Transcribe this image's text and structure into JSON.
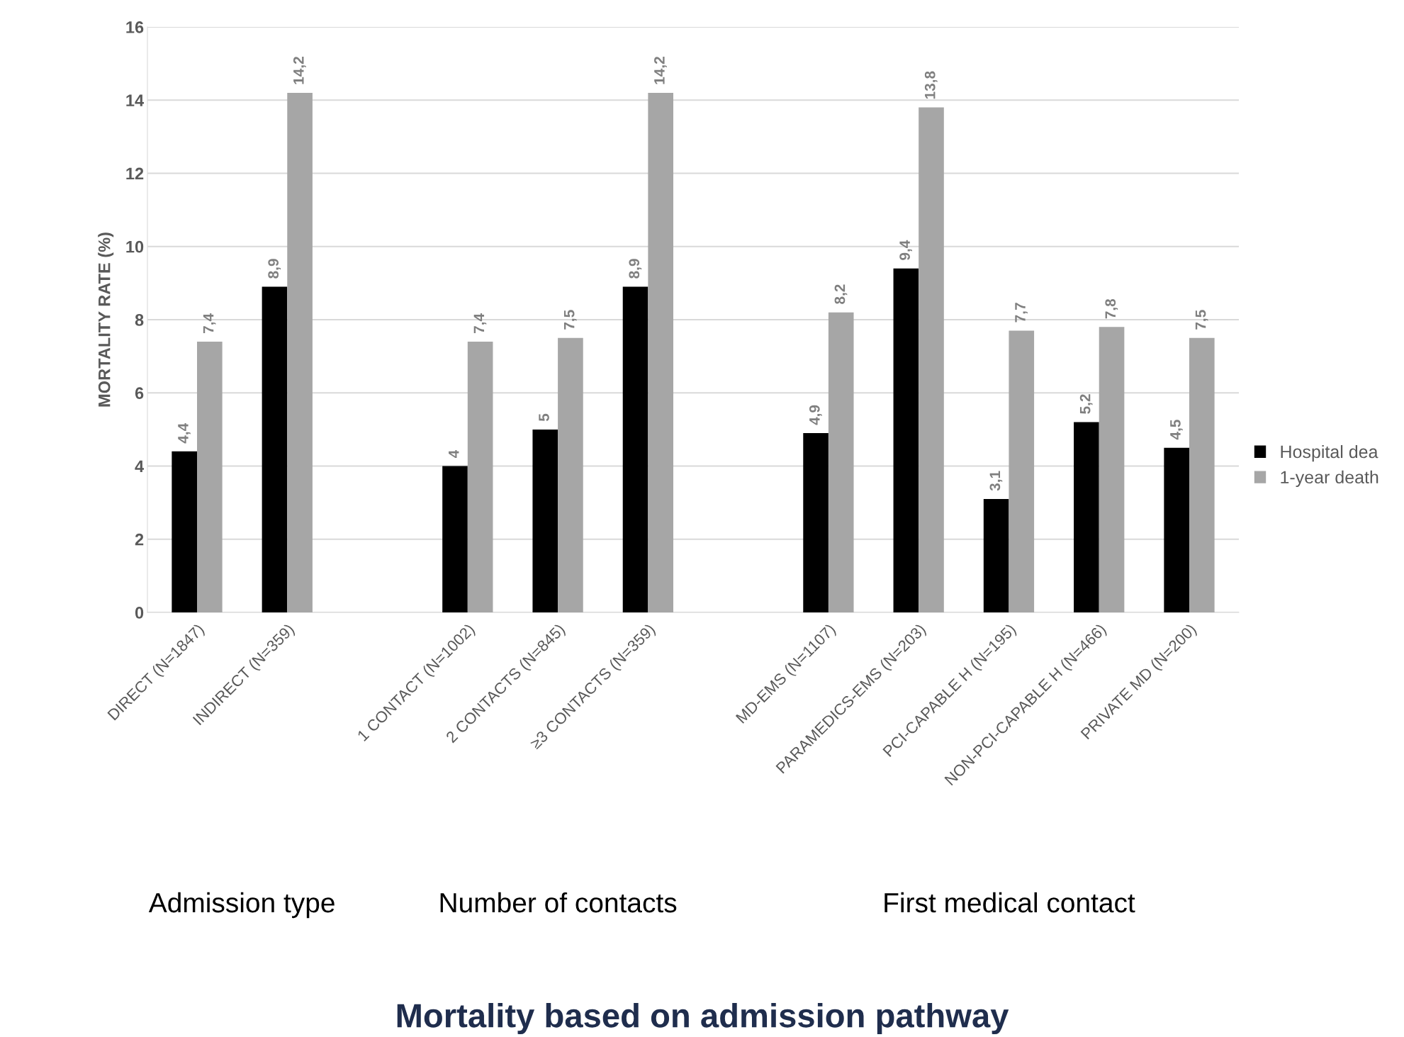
{
  "chart_data": {
    "type": "bar",
    "title": "Mortality based on admission pathway",
    "ylabel": "MORTALITY RATE (%)",
    "categories": [
      "DIRECT (N=1847)",
      "INDIRECT (N=359)",
      null,
      "1 CONTACT (N=1002)",
      "2 CONTACTS (N=845)",
      "≥3 CONTACTS (N=359)",
      null,
      "MD-EMS (N=1107)",
      "PARAMEDICS-EMS (N=203)",
      "PCI-CAPABLE H (N=195)",
      "NON-PCI-CAPABLE H (N=466)",
      "PRIVATE MD (N=200)"
    ],
    "series": [
      {
        "name": "Hospital dea",
        "color": "#000000",
        "values": [
          4.4,
          8.9,
          null,
          4,
          5,
          8.9,
          null,
          4.9,
          9.4,
          3.1,
          5.2,
          4.5
        ],
        "value_labels": [
          "4,4",
          "8,9",
          null,
          "4",
          "5",
          "8,9",
          null,
          "4,9",
          "9,4",
          "3,1",
          "5,2",
          "4,5"
        ]
      },
      {
        "name": "1-year death",
        "color": "#a6a6a6",
        "values": [
          7.4,
          14.2,
          null,
          7.4,
          7.5,
          14.2,
          null,
          8.2,
          13.8,
          7.7,
          7.8,
          7.5
        ],
        "value_labels": [
          "7,4",
          "14,2",
          null,
          "7,4",
          "7,5",
          "14,2",
          null,
          "8,2",
          "13,8",
          "7,7",
          "7,8",
          "7,5"
        ]
      }
    ],
    "ylim": [
      0,
      16
    ],
    "yticks": [
      0,
      2,
      4,
      6,
      8,
      10,
      12,
      14,
      16
    ],
    "grid": "y",
    "legend": "right",
    "annotations": [
      "Admission type",
      "Number of contacts",
      "First medical contact"
    ]
  }
}
